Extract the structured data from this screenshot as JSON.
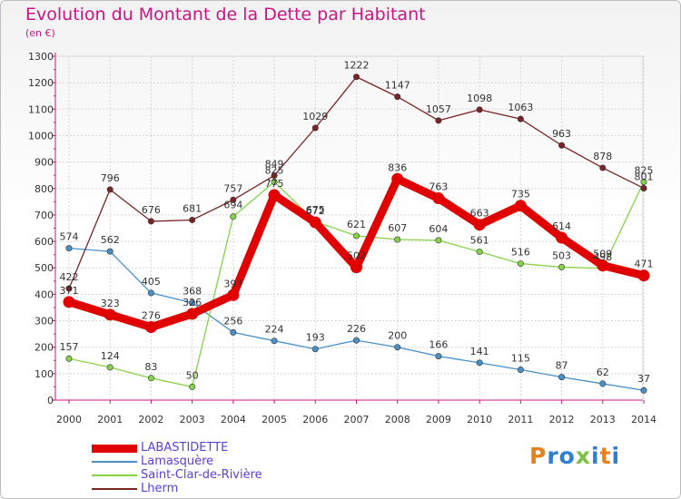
{
  "title": "Evolution du Montant de la Dette par Habitant",
  "subtitle": "(en €)",
  "logo": {
    "text": "Proxiti",
    "letter_colors": [
      "#e8801a",
      "#2f7fd0",
      "#2f7fd0",
      "#7cc242",
      "#2f7fd0",
      "#e8801a",
      "#2f7fd0"
    ]
  },
  "chart_data": {
    "type": "line",
    "x": [
      2000,
      2001,
      2002,
      2003,
      2004,
      2005,
      2006,
      2007,
      2008,
      2009,
      2010,
      2011,
      2012,
      2013,
      2014
    ],
    "ylim": [
      0,
      1300
    ],
    "yticks": [
      0,
      100,
      200,
      300,
      400,
      500,
      600,
      700,
      800,
      900,
      1000,
      1100,
      1200,
      1300
    ],
    "grid": true,
    "legend_position": "bottom-left",
    "series": [
      {
        "name": "LABASTIDETTE",
        "color": "#e00000",
        "values": [
          371,
          323,
          276,
          326,
          397,
          775,
          672,
          502,
          836,
          763,
          663,
          735,
          614,
          509,
          471
        ]
      },
      {
        "name": "Lamasquère",
        "color": "#4a90c8",
        "values": [
          574,
          562,
          405,
          368,
          256,
          224,
          193,
          226,
          200,
          166,
          141,
          115,
          87,
          62,
          37
        ]
      },
      {
        "name": "Saint-Clar-de-Rivière",
        "color": "#86d34a",
        "values": [
          157,
          124,
          83,
          50,
          694,
          825,
          675,
          621,
          607,
          604,
          561,
          516,
          503,
          498,
          825
        ]
      },
      {
        "name": "Lherm",
        "color": "#7a2424",
        "values": [
          422,
          796,
          676,
          681,
          757,
          849,
          1029,
          1222,
          1147,
          1057,
          1098,
          1063,
          963,
          878,
          801
        ]
      }
    ]
  }
}
